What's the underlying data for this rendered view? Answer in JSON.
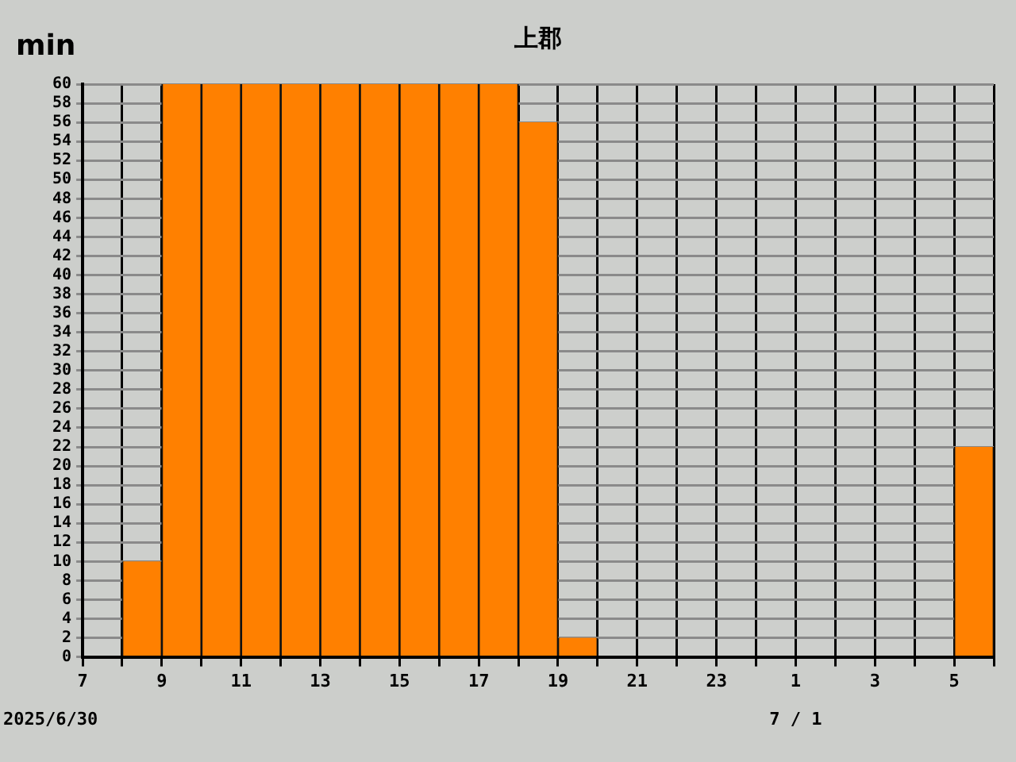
{
  "chart_data": {
    "type": "histogram",
    "title": "上郡",
    "ylabel": "min",
    "bins": [
      "2025-06-30T07:00",
      "2025-06-30T08:00",
      "2025-06-30T09:00",
      "2025-06-30T10:00",
      "2025-06-30T11:00",
      "2025-06-30T12:00",
      "2025-06-30T13:00",
      "2025-06-30T14:00",
      "2025-06-30T15:00",
      "2025-06-30T16:00",
      "2025-06-30T17:00",
      "2025-06-30T18:00",
      "2025-06-30T19:00",
      "2025-06-30T20:00",
      "2025-06-30T21:00",
      "2025-06-30T22:00",
      "2025-06-30T23:00",
      "2025-07-01T00:00",
      "2025-07-01T01:00",
      "2025-07-01T02:00",
      "2025-07-01T03:00",
      "2025-07-01T04:00",
      "2025-07-01T05:00",
      "2025-07-01T06:00"
    ],
    "values": [
      0,
      10,
      60,
      60,
      60,
      60,
      60,
      60,
      60,
      60,
      60,
      56,
      2,
      0,
      0,
      0,
      0,
      0,
      0,
      0,
      0,
      0,
      22
    ],
    "color": "#ff8000",
    "xlim": [
      "2025-06-30T07:00",
      "2025-07-01T06:00"
    ],
    "xticks": [
      {
        "value": "2025-06-30T07:00",
        "label": "7"
      },
      {
        "value": "2025-06-30T08:00",
        "label": null
      },
      {
        "value": "2025-06-30T09:00",
        "label": "9"
      },
      {
        "value": "2025-06-30T10:00",
        "label": null
      },
      {
        "value": "2025-06-30T11:00",
        "label": "11"
      },
      {
        "value": "2025-06-30T12:00",
        "label": null
      },
      {
        "value": "2025-06-30T13:00",
        "label": "13"
      },
      {
        "value": "2025-06-30T14:00",
        "label": null
      },
      {
        "value": "2025-06-30T15:00",
        "label": "15"
      },
      {
        "value": "2025-06-30T16:00",
        "label": null
      },
      {
        "value": "2025-06-30T17:00",
        "label": "17"
      },
      {
        "value": "2025-06-30T18:00",
        "label": null
      },
      {
        "value": "2025-06-30T19:00",
        "label": "19"
      },
      {
        "value": "2025-06-30T20:00",
        "label": null
      },
      {
        "value": "2025-06-30T21:00",
        "label": "21"
      },
      {
        "value": "2025-06-30T22:00",
        "label": null
      },
      {
        "value": "2025-06-30T23:00",
        "label": "23"
      },
      {
        "value": "2025-07-01T00:00",
        "label": null
      },
      {
        "value": "2025-07-01T01:00",
        "label": "1"
      },
      {
        "value": "2025-07-01T02:00",
        "label": null
      },
      {
        "value": "2025-07-01T03:00",
        "label": "3"
      },
      {
        "value": "2025-07-01T04:00",
        "label": null
      },
      {
        "value": "2025-07-01T05:00",
        "label": "5"
      },
      {
        "value": "2025-07-01T06:00",
        "label": null
      }
    ],
    "ylim": [
      0,
      60
    ],
    "yticks": [
      0,
      2,
      4,
      6,
      8,
      10,
      12,
      14,
      16,
      18,
      20,
      22,
      24,
      26,
      28,
      30,
      32,
      34,
      36,
      38,
      40,
      42,
      44,
      46,
      48,
      50,
      52,
      54,
      56,
      58,
      60
    ],
    "grid": true,
    "legend": false,
    "annotations": [
      "2025/6/30",
      "7 / 1"
    ]
  }
}
